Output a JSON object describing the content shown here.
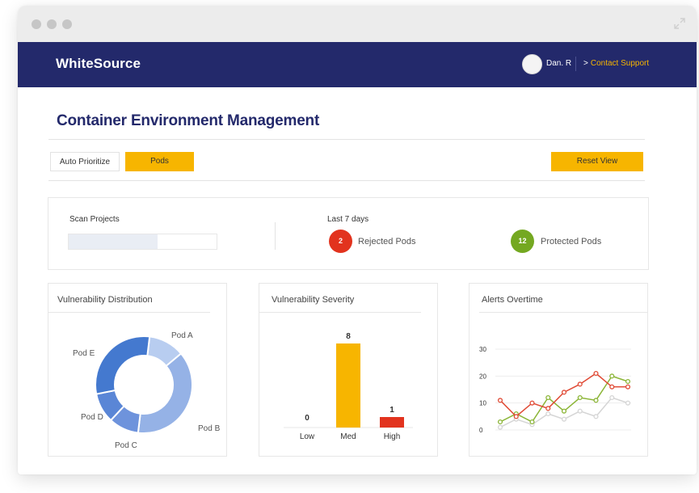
{
  "brand": "WhiteSource",
  "user": {
    "name": "Dan. R"
  },
  "nav": {
    "support_chevron": ">",
    "support_label": "Contact Support"
  },
  "page": {
    "title": "Container Environment Management"
  },
  "toolbar": {
    "auto_prioritize": "Auto Prioritize",
    "pods": "Pods",
    "reset_view": "Reset View"
  },
  "summary": {
    "scan_projects_label": "Scan Projects",
    "scan_projects_progress": 0.6,
    "period_label": "Last 7 days",
    "rejected": {
      "count": "2",
      "label": "Rejected Pods",
      "color": "#e2331e"
    },
    "protected": {
      "count": "12",
      "label": "Protected Pods",
      "color": "#74a821"
    }
  },
  "charts": {
    "distribution_title": "Vulnerability Distribution",
    "severity_title": "Vulnerability Severity",
    "alerts_title": "Alerts Overtime"
  },
  "chart_data": [
    {
      "type": "pie",
      "title": "Vulnerability Distribution",
      "labels": [
        "Pod A",
        "Pod B",
        "Pod C",
        "Pod D",
        "Pod E"
      ],
      "values": [
        12,
        38,
        10,
        10,
        30
      ],
      "colors": [
        "#b8cdf0",
        "#95b2e6",
        "#6e93dc",
        "#5a86d6",
        "#4479cf"
      ],
      "donut": true
    },
    {
      "type": "bar",
      "title": "Vulnerability Severity",
      "categories": [
        "Low",
        "Med",
        "High"
      ],
      "values": [
        0,
        8,
        1
      ],
      "value_labels": [
        "0",
        "8",
        "1"
      ],
      "colors": [
        "#cccccc",
        "#f7b500",
        "#e2331e"
      ]
    },
    {
      "type": "line",
      "title": "Alerts Overtime",
      "yticks": [
        "30",
        "20",
        "10",
        "0"
      ],
      "ylim": [
        0,
        30
      ],
      "grid": true,
      "series": [
        {
          "color": "#e04a35",
          "values": [
            11,
            5,
            10,
            8,
            14,
            17,
            21,
            16,
            16
          ]
        },
        {
          "color": "#8bb536",
          "values": [
            3,
            6,
            3,
            12,
            7,
            12,
            11,
            20,
            18
          ]
        },
        {
          "color": "#d5d5d5",
          "values": [
            1,
            4,
            2,
            6,
            4,
            7,
            5,
            12,
            10
          ]
        }
      ]
    }
  ]
}
